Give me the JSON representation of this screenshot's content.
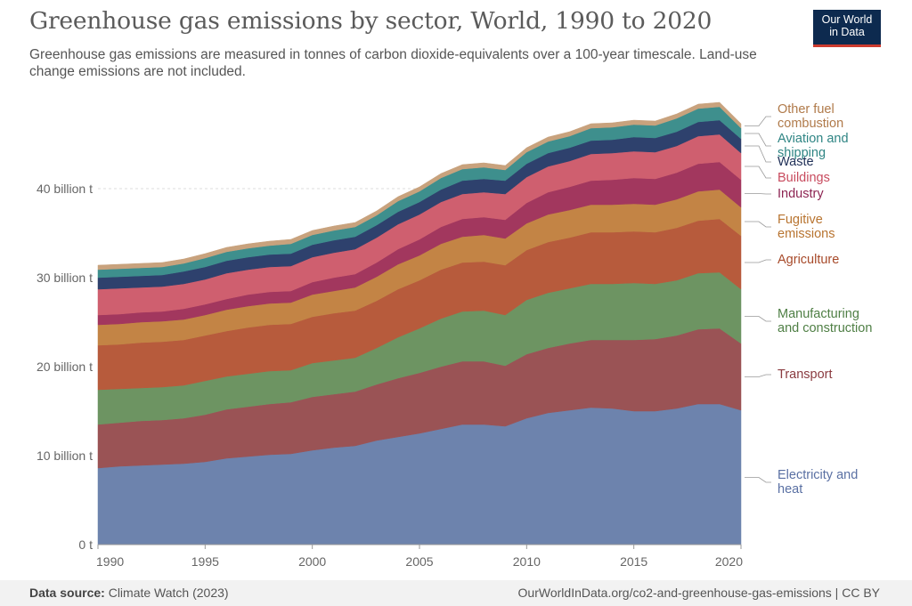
{
  "header": {
    "title": "Greenhouse gas emissions by sector, World, 1990 to 2020",
    "subtitle": "Greenhouse gas emissions are measured in tonnes of carbon dioxide-equivalents over a 100-year timescale. Land-use change emissions are not included."
  },
  "logo": {
    "line1": "Our World",
    "line2": "in Data",
    "bg_color": "#0d2a4f",
    "accent_color": "#cc3b2f"
  },
  "footer": {
    "source_label": "Data source:",
    "source_value": "Climate Watch (2023)",
    "url_license": "OurWorldInData.org/co2-and-greenhouse-gas-emissions | CC BY"
  },
  "chart_data": {
    "type": "area",
    "stacked": true,
    "x": [
      1990,
      1991,
      1992,
      1993,
      1994,
      1995,
      1996,
      1997,
      1998,
      1999,
      2000,
      2001,
      2002,
      2003,
      2004,
      2005,
      2006,
      2007,
      2008,
      2009,
      2010,
      2011,
      2012,
      2013,
      2014,
      2015,
      2016,
      2017,
      2018,
      2019,
      2020
    ],
    "x_ticks": [
      "1990",
      "1995",
      "2000",
      "2005",
      "2010",
      "2015",
      "2020"
    ],
    "y_ticks": [
      "0 t",
      "10 billion t",
      "20 billion t",
      "30 billion t",
      "40 billion t"
    ],
    "ylim": [
      0,
      50
    ],
    "grid": true,
    "unit": "billion t",
    "series": [
      {
        "name": "Electricity and heat",
        "color": "#6d83ad",
        "values": [
          8.6,
          8.8,
          8.9,
          9.0,
          9.1,
          9.3,
          9.7,
          9.9,
          10.1,
          10.2,
          10.6,
          10.9,
          11.1,
          11.7,
          12.1,
          12.5,
          13.0,
          13.5,
          13.5,
          13.3,
          14.2,
          14.8,
          15.1,
          15.4,
          15.3,
          15.0,
          15.0,
          15.3,
          15.8,
          15.8,
          15.1
        ]
      },
      {
        "name": "Transport",
        "color": "#9a5355",
        "values": [
          4.9,
          4.9,
          5.0,
          5.0,
          5.1,
          5.3,
          5.5,
          5.6,
          5.7,
          5.8,
          6.0,
          6.0,
          6.1,
          6.3,
          6.6,
          6.8,
          7.0,
          7.1,
          7.1,
          6.8,
          7.2,
          7.3,
          7.5,
          7.6,
          7.7,
          8.0,
          8.1,
          8.2,
          8.4,
          8.5,
          7.5
        ]
      },
      {
        "name": "Manufacturing and construction",
        "color": "#6d9462",
        "values": [
          3.9,
          3.8,
          3.7,
          3.7,
          3.7,
          3.8,
          3.7,
          3.7,
          3.7,
          3.6,
          3.8,
          3.8,
          3.8,
          4.1,
          4.6,
          5.0,
          5.4,
          5.6,
          5.7,
          5.7,
          6.1,
          6.2,
          6.2,
          6.3,
          6.3,
          6.4,
          6.2,
          6.2,
          6.3,
          6.3,
          6.1
        ]
      },
      {
        "name": "Agriculture",
        "color": "#b75b3c",
        "values": [
          5.0,
          5.0,
          5.1,
          5.1,
          5.1,
          5.1,
          5.1,
          5.2,
          5.2,
          5.2,
          5.2,
          5.3,
          5.3,
          5.3,
          5.4,
          5.4,
          5.5,
          5.5,
          5.5,
          5.6,
          5.6,
          5.7,
          5.7,
          5.8,
          5.8,
          5.8,
          5.8,
          5.9,
          5.9,
          6.0,
          6.0
        ]
      },
      {
        "name": "Fugitive emissions",
        "color": "#c38445",
        "values": [
          2.3,
          2.3,
          2.3,
          2.3,
          2.3,
          2.3,
          2.4,
          2.4,
          2.4,
          2.4,
          2.5,
          2.5,
          2.6,
          2.7,
          2.8,
          2.8,
          2.9,
          2.9,
          3.0,
          3.0,
          3.0,
          3.1,
          3.1,
          3.1,
          3.1,
          3.1,
          3.1,
          3.2,
          3.3,
          3.3,
          3.2
        ]
      },
      {
        "name": "Industry",
        "color": "#a2375e",
        "values": [
          1.1,
          1.1,
          1.1,
          1.1,
          1.2,
          1.2,
          1.2,
          1.3,
          1.3,
          1.3,
          1.4,
          1.5,
          1.5,
          1.6,
          1.7,
          1.8,
          1.9,
          2.0,
          2.0,
          2.1,
          2.3,
          2.5,
          2.6,
          2.7,
          2.8,
          2.9,
          2.9,
          3.0,
          3.1,
          3.1,
          3.1
        ]
      },
      {
        "name": "Buildings",
        "color": "#cf5f6f",
        "values": [
          2.9,
          2.9,
          2.8,
          2.8,
          2.8,
          2.8,
          2.9,
          2.8,
          2.8,
          2.8,
          2.8,
          2.8,
          2.8,
          2.8,
          2.8,
          2.8,
          2.8,
          2.8,
          2.8,
          2.9,
          2.9,
          2.9,
          2.9,
          3.0,
          3.0,
          3.0,
          3.0,
          3.0,
          3.1,
          3.1,
          3.0
        ]
      },
      {
        "name": "Waste",
        "color": "#2e416d",
        "values": [
          1.3,
          1.3,
          1.3,
          1.3,
          1.4,
          1.4,
          1.4,
          1.4,
          1.4,
          1.4,
          1.4,
          1.4,
          1.4,
          1.4,
          1.4,
          1.4,
          1.4,
          1.5,
          1.5,
          1.5,
          1.5,
          1.5,
          1.5,
          1.5,
          1.5,
          1.6,
          1.6,
          1.6,
          1.6,
          1.6,
          1.6
        ]
      },
      {
        "name": "Aviation and shipping",
        "color": "#3e8f8d",
        "values": [
          0.9,
          0.9,
          0.9,
          0.9,
          0.9,
          1.0,
          1.0,
          1.0,
          1.0,
          1.1,
          1.1,
          1.1,
          1.1,
          1.1,
          1.2,
          1.2,
          1.3,
          1.3,
          1.3,
          1.2,
          1.3,
          1.3,
          1.3,
          1.4,
          1.4,
          1.4,
          1.4,
          1.5,
          1.5,
          1.5,
          1.2
        ]
      },
      {
        "name": "Other fuel combustion",
        "color": "#c8a27d",
        "values": [
          0.5,
          0.5,
          0.5,
          0.5,
          0.5,
          0.5,
          0.5,
          0.5,
          0.5,
          0.5,
          0.5,
          0.5,
          0.5,
          0.5,
          0.5,
          0.5,
          0.5,
          0.5,
          0.5,
          0.5,
          0.5,
          0.5,
          0.5,
          0.5,
          0.5,
          0.5,
          0.5,
          0.5,
          0.5,
          0.5,
          0.5
        ]
      }
    ],
    "labels": [
      {
        "lines": [
          "Other fuel",
          "combustion"
        ],
        "color": "#b07a4a"
      },
      {
        "lines": [
          "Aviation and",
          "shipping"
        ],
        "color": "#2f8584"
      },
      {
        "lines": [
          "Waste"
        ],
        "color": "#1f2f57"
      },
      {
        "lines": [
          "Buildings"
        ],
        "color": "#c84b5e"
      },
      {
        "lines": [
          "Industry"
        ],
        "color": "#8d2452"
      },
      {
        "lines": [
          "Fugitive",
          "emissions"
        ],
        "color": "#b87430"
      },
      {
        "lines": [
          "Agriculture"
        ],
        "color": "#a74a2a"
      },
      {
        "lines": [
          "Manufacturing",
          "and construction"
        ],
        "color": "#4f7f45"
      },
      {
        "lines": [
          "Transport"
        ],
        "color": "#8a3b40"
      },
      {
        "lines": [
          "Electricity and",
          "heat"
        ],
        "color": "#5a70a3"
      }
    ]
  }
}
